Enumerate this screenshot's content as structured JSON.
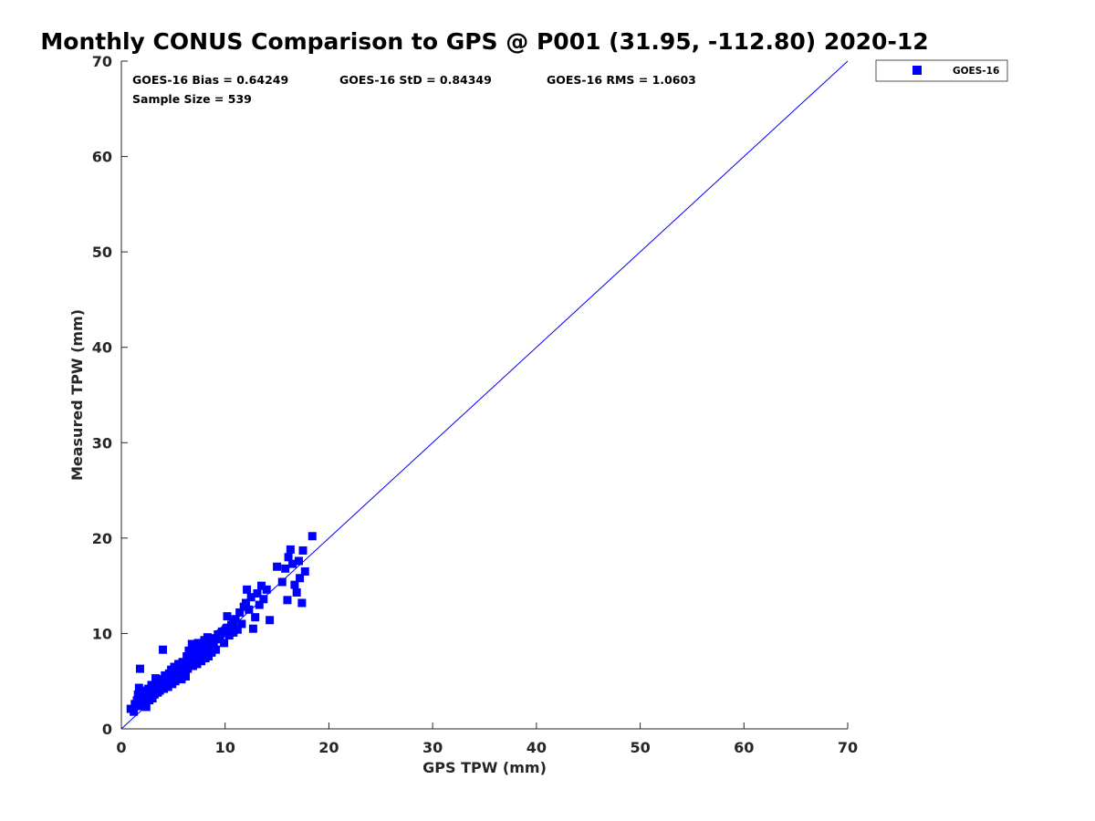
{
  "chart_data": {
    "type": "scatter",
    "title": "Monthly CONUS Comparison to GPS @ P001 (31.95, -112.80) 2020-12",
    "xlabel": "GPS TPW (mm)",
    "ylabel": "Measured TPW (mm)",
    "xlim": [
      0,
      70
    ],
    "ylim": [
      0,
      70
    ],
    "x_ticks": [
      "0",
      "10",
      "20",
      "30",
      "40",
      "50",
      "60",
      "70"
    ],
    "y_ticks": [
      "0",
      "10",
      "20",
      "30",
      "40",
      "50",
      "60",
      "70"
    ],
    "grid": false,
    "legend_position": "top-right, outside plot",
    "reference_line": {
      "from": [
        0,
        0
      ],
      "to": [
        70,
        70
      ],
      "color": "#0000ff"
    },
    "annotations": {
      "bias": "GOES-16 Bias = 0.64249",
      "std": "GOES-16 StD = 0.84349",
      "rms": "GOES-16 RMS = 1.0603",
      "sample_size": "Sample Size = 539"
    },
    "series": [
      {
        "name": "GOES-16",
        "color": "#0000ff",
        "marker": "square",
        "points": [
          [
            0.9,
            2.1
          ],
          [
            1.2,
            1.8
          ],
          [
            1.3,
            2.6
          ],
          [
            1.5,
            3.0
          ],
          [
            1.6,
            3.6
          ],
          [
            1.7,
            4.3
          ],
          [
            1.8,
            6.3
          ],
          [
            1.9,
            2.4
          ],
          [
            2.0,
            3.3
          ],
          [
            2.1,
            2.8
          ],
          [
            2.2,
            4.0
          ],
          [
            2.3,
            3.1
          ],
          [
            2.4,
            2.3
          ],
          [
            2.5,
            3.7
          ],
          [
            2.6,
            4.2
          ],
          [
            2.7,
            3.0
          ],
          [
            2.8,
            3.5
          ],
          [
            2.9,
            4.6
          ],
          [
            3.0,
            3.2
          ],
          [
            3.1,
            4.1
          ],
          [
            3.2,
            3.6
          ],
          [
            3.3,
            5.3
          ],
          [
            3.4,
            4.4
          ],
          [
            3.5,
            3.8
          ],
          [
            3.6,
            4.9
          ],
          [
            3.7,
            4.0
          ],
          [
            3.8,
            5.2
          ],
          [
            3.9,
            4.5
          ],
          [
            4.0,
            8.3
          ],
          [
            4.1,
            4.2
          ],
          [
            4.2,
            5.6
          ],
          [
            4.3,
            4.8
          ],
          [
            4.4,
            5.0
          ],
          [
            4.5,
            4.4
          ],
          [
            4.6,
            5.8
          ],
          [
            4.7,
            5.1
          ],
          [
            4.8,
            6.2
          ],
          [
            4.9,
            4.7
          ],
          [
            5.0,
            5.5
          ],
          [
            5.1,
            6.5
          ],
          [
            5.2,
            5.0
          ],
          [
            5.3,
            6.0
          ],
          [
            5.4,
            5.3
          ],
          [
            5.5,
            6.8
          ],
          [
            5.6,
            5.7
          ],
          [
            5.7,
            6.4
          ],
          [
            5.8,
            5.2
          ],
          [
            5.9,
            7.0
          ],
          [
            6.0,
            6.1
          ],
          [
            6.1,
            6.7
          ],
          [
            6.2,
            5.5
          ],
          [
            6.3,
            7.6
          ],
          [
            6.4,
            6.3
          ],
          [
            6.5,
            8.2
          ],
          [
            6.6,
            6.9
          ],
          [
            6.7,
            7.3
          ],
          [
            6.8,
            8.9
          ],
          [
            6.9,
            6.6
          ],
          [
            7.0,
            7.8
          ],
          [
            7.1,
            7.0
          ],
          [
            7.2,
            8.5
          ],
          [
            7.3,
            6.8
          ],
          [
            7.4,
            9.0
          ],
          [
            7.5,
            7.5
          ],
          [
            7.6,
            8.1
          ],
          [
            7.7,
            7.1
          ],
          [
            7.8,
            8.7
          ],
          [
            7.9,
            7.8
          ],
          [
            8.0,
            9.3
          ],
          [
            8.1,
            7.4
          ],
          [
            8.2,
            8.4
          ],
          [
            8.3,
            9.6
          ],
          [
            8.4,
            7.6
          ],
          [
            8.5,
            8.8
          ],
          [
            8.7,
            8.0
          ],
          [
            8.9,
            9.1
          ],
          [
            9.1,
            8.3
          ],
          [
            9.3,
            9.9
          ],
          [
            9.5,
            9.4
          ],
          [
            9.7,
            10.2
          ],
          [
            9.9,
            9.0
          ],
          [
            10.1,
            10.5
          ],
          [
            10.2,
            11.8
          ],
          [
            10.4,
            9.8
          ],
          [
            10.6,
            10.9
          ],
          [
            10.8,
            10.1
          ],
          [
            11.0,
            11.5
          ],
          [
            11.2,
            10.4
          ],
          [
            11.4,
            12.2
          ],
          [
            11.6,
            11.0
          ],
          [
            11.8,
            12.8
          ],
          [
            12.0,
            13.2
          ],
          [
            12.1,
            14.6
          ],
          [
            12.3,
            12.5
          ],
          [
            12.5,
            13.8
          ],
          [
            12.7,
            10.5
          ],
          [
            12.9,
            11.7
          ],
          [
            13.1,
            14.2
          ],
          [
            13.3,
            13.0
          ],
          [
            13.5,
            15.0
          ],
          [
            13.7,
            13.6
          ],
          [
            14.0,
            14.6
          ],
          [
            14.3,
            11.4
          ],
          [
            15.0,
            17.0
          ],
          [
            15.5,
            15.4
          ],
          [
            15.8,
            16.8
          ],
          [
            16.0,
            13.5
          ],
          [
            16.1,
            18.0
          ],
          [
            16.3,
            18.8
          ],
          [
            16.5,
            17.3
          ],
          [
            16.7,
            15.1
          ],
          [
            16.9,
            14.3
          ],
          [
            17.1,
            17.6
          ],
          [
            17.2,
            15.8
          ],
          [
            17.4,
            13.2
          ],
          [
            17.5,
            18.7
          ],
          [
            17.7,
            16.5
          ],
          [
            18.4,
            20.2
          ],
          [
            2.4,
            3.9
          ],
          [
            3.0,
            3.9
          ],
          [
            3.6,
            4.5
          ],
          [
            4.2,
            5.0
          ],
          [
            4.8,
            5.5
          ],
          [
            5.4,
            6.1
          ],
          [
            6.0,
            6.6
          ],
          [
            6.6,
            7.2
          ],
          [
            7.2,
            7.8
          ],
          [
            7.8,
            8.3
          ],
          [
            8.4,
            8.9
          ],
          [
            9.0,
            9.5
          ],
          [
            9.6,
            10.0
          ],
          [
            10.2,
            10.6
          ],
          [
            10.8,
            11.2
          ],
          [
            1.6,
            2.4
          ],
          [
            2.2,
            2.7
          ],
          [
            2.8,
            3.3
          ],
          [
            3.4,
            3.9
          ],
          [
            4.0,
            4.4
          ],
          [
            4.6,
            5.0
          ],
          [
            5.2,
            5.6
          ],
          [
            5.8,
            6.2
          ],
          [
            6.4,
            6.8
          ],
          [
            7.0,
            7.4
          ],
          [
            7.6,
            8.0
          ],
          [
            8.2,
            8.6
          ],
          [
            8.8,
            9.2
          ],
          [
            9.4,
            9.7
          ],
          [
            10.0,
            10.3
          ],
          [
            10.6,
            10.9
          ]
        ]
      }
    ]
  }
}
